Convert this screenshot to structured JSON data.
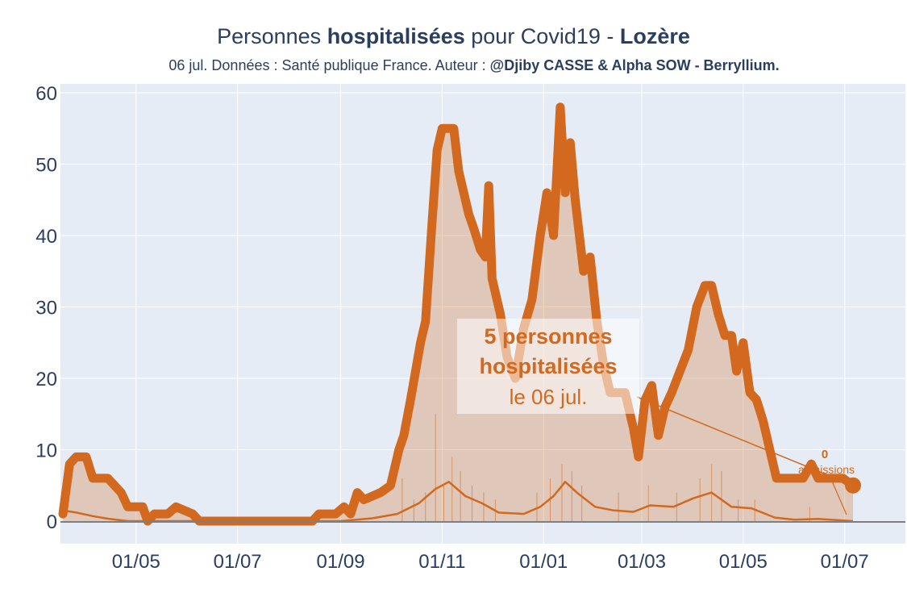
{
  "header": {
    "title_prefix": "Personnes ",
    "title_bold1": "hospitalisées",
    "title_mid": " pour Covid19 - ",
    "title_bold2": "Lozère",
    "subtitle_prefix": "06 jul. Données : Santé publique France. Auteur : ",
    "subtitle_bold": "@Djiby CASSE & Alpha SOW - Berryllium."
  },
  "annotations": {
    "main_line1": "5 personnes",
    "main_line2": "hospitalisées",
    "main_line3": "le 06 jul.",
    "admissions_value": "0",
    "admissions_label": "admissions"
  },
  "colors": {
    "line": "#d2691e",
    "fill": "rgba(210,105,30,0.28)",
    "plot_bg": "#e5ecf6",
    "grid": "#ffffff",
    "text": "#2a3f5f"
  },
  "chart_data": {
    "type": "area",
    "x_start": "2020-03-18",
    "x_end": "2021-07-06",
    "ylim": [
      0,
      60
    ],
    "yticks": [
      0,
      10,
      20,
      30,
      40,
      50,
      60
    ],
    "xticks": [
      {
        "date": "2020-05-01",
        "label": "01/05"
      },
      {
        "date": "2020-07-01",
        "label": "01/07"
      },
      {
        "date": "2020-09-01",
        "label": "01/09"
      },
      {
        "date": "2020-11-01",
        "label": "01/11"
      },
      {
        "date": "2021-01-01",
        "label": "01/01"
      },
      {
        "date": "2021-03-01",
        "label": "01/03"
      },
      {
        "date": "2021-05-01",
        "label": "01/05"
      },
      {
        "date": "2021-07-01",
        "label": "01/07"
      }
    ],
    "series": [
      {
        "kind": "hospitalisations",
        "points": [
          [
            "2020-03-18",
            1
          ],
          [
            "2020-03-22",
            8
          ],
          [
            "2020-03-26",
            9
          ],
          [
            "2020-04-01",
            9
          ],
          [
            "2020-04-05",
            6
          ],
          [
            "2020-04-14",
            6
          ],
          [
            "2020-04-18",
            5
          ],
          [
            "2020-04-22",
            4
          ],
          [
            "2020-04-26",
            2
          ],
          [
            "2020-05-05",
            2
          ],
          [
            "2020-05-08",
            0
          ],
          [
            "2020-05-12",
            1
          ],
          [
            "2020-05-20",
            1
          ],
          [
            "2020-05-25",
            2
          ],
          [
            "2020-06-04",
            1
          ],
          [
            "2020-06-08",
            0
          ],
          [
            "2020-08-15",
            0
          ],
          [
            "2020-08-19",
            1
          ],
          [
            "2020-08-29",
            1
          ],
          [
            "2020-09-03",
            2
          ],
          [
            "2020-09-07",
            1
          ],
          [
            "2020-09-11",
            4
          ],
          [
            "2020-09-15",
            3
          ],
          [
            "2020-09-25",
            4
          ],
          [
            "2020-10-01",
            5
          ],
          [
            "2020-10-06",
            10
          ],
          [
            "2020-10-09",
            12
          ],
          [
            "2020-10-13",
            17
          ],
          [
            "2020-10-19",
            25
          ],
          [
            "2020-10-22",
            28
          ],
          [
            "2020-10-26",
            42
          ],
          [
            "2020-10-29",
            52
          ],
          [
            "2020-11-01",
            55
          ],
          [
            "2020-11-05",
            55
          ],
          [
            "2020-11-08",
            55
          ],
          [
            "2020-11-11",
            49
          ],
          [
            "2020-11-14",
            46
          ],
          [
            "2020-11-17",
            43
          ],
          [
            "2020-11-20",
            41
          ],
          [
            "2020-11-24",
            38
          ],
          [
            "2020-11-27",
            37
          ],
          [
            "2020-11-29",
            47
          ],
          [
            "2020-12-01",
            34
          ],
          [
            "2020-12-06",
            29
          ],
          [
            "2020-12-10",
            23
          ],
          [
            "2020-12-15",
            20
          ],
          [
            "2020-12-20",
            27
          ],
          [
            "2020-12-25",
            31
          ],
          [
            "2020-12-30",
            40
          ],
          [
            "2021-01-03",
            46
          ],
          [
            "2021-01-07",
            40
          ],
          [
            "2021-01-11",
            58
          ],
          [
            "2021-01-14",
            46
          ],
          [
            "2021-01-17",
            53
          ],
          [
            "2021-01-20",
            45
          ],
          [
            "2021-01-25",
            35
          ],
          [
            "2021-01-29",
            37
          ],
          [
            "2021-02-02",
            28
          ],
          [
            "2021-02-06",
            22
          ],
          [
            "2021-02-10",
            18
          ],
          [
            "2021-02-19",
            18
          ],
          [
            "2021-02-24",
            13
          ],
          [
            "2021-02-27",
            9
          ],
          [
            "2021-03-03",
            17
          ],
          [
            "2021-03-07",
            19
          ],
          [
            "2021-03-11",
            12
          ],
          [
            "2021-03-15",
            16
          ],
          [
            "2021-03-19",
            18
          ],
          [
            "2021-03-24",
            21
          ],
          [
            "2021-03-29",
            24
          ],
          [
            "2021-04-03",
            30
          ],
          [
            "2021-04-08",
            33
          ],
          [
            "2021-04-12",
            33
          ],
          [
            "2021-04-16",
            29
          ],
          [
            "2021-04-20",
            26
          ],
          [
            "2021-04-24",
            26
          ],
          [
            "2021-04-27",
            21
          ],
          [
            "2021-05-01",
            25
          ],
          [
            "2021-05-05",
            18
          ],
          [
            "2021-05-09",
            17
          ],
          [
            "2021-05-13",
            14
          ],
          [
            "2021-05-17",
            10
          ],
          [
            "2021-05-21",
            6
          ],
          [
            "2021-06-06",
            6
          ],
          [
            "2021-06-11",
            8
          ],
          [
            "2021-06-15",
            6
          ],
          [
            "2021-06-30",
            6
          ],
          [
            "2021-07-06",
            5
          ]
        ]
      },
      {
        "kind": "admissions",
        "points": [
          [
            "2020-03-18",
            1.5
          ],
          [
            "2020-03-26",
            1.2
          ],
          [
            "2020-04-05",
            0.7
          ],
          [
            "2020-04-15",
            0.3
          ],
          [
            "2020-04-26",
            0
          ],
          [
            "2020-09-01",
            0
          ],
          [
            "2020-09-20",
            0.4
          ],
          [
            "2020-10-05",
            1.0
          ],
          [
            "2020-10-18",
            2.5
          ],
          [
            "2020-10-28",
            4.5
          ],
          [
            "2020-11-05",
            5.5
          ],
          [
            "2020-11-15",
            3.5
          ],
          [
            "2020-11-25",
            2.5
          ],
          [
            "2020-12-05",
            1.2
          ],
          [
            "2020-12-20",
            1.0
          ],
          [
            "2020-12-30",
            2.0
          ],
          [
            "2021-01-07",
            3.5
          ],
          [
            "2021-01-14",
            5.5
          ],
          [
            "2021-01-21",
            4.0
          ],
          [
            "2021-02-01",
            2.0
          ],
          [
            "2021-02-12",
            1.5
          ],
          [
            "2021-02-24",
            1.3
          ],
          [
            "2021-03-06",
            2.2
          ],
          [
            "2021-03-20",
            2.0
          ],
          [
            "2021-04-01",
            3.2
          ],
          [
            "2021-04-12",
            4.0
          ],
          [
            "2021-04-24",
            2.0
          ],
          [
            "2021-05-06",
            1.8
          ],
          [
            "2021-05-20",
            0.5
          ],
          [
            "2021-06-01",
            0.2
          ],
          [
            "2021-06-15",
            0.3
          ],
          [
            "2021-07-06",
            0
          ]
        ]
      },
      {
        "kind": "daily_admissions_bars",
        "points": [
          [
            "2020-10-08",
            6
          ],
          [
            "2020-10-15",
            3
          ],
          [
            "2020-10-22",
            4
          ],
          [
            "2020-10-28",
            15
          ],
          [
            "2020-11-02",
            5
          ],
          [
            "2020-11-07",
            9
          ],
          [
            "2020-11-12",
            7
          ],
          [
            "2020-11-19",
            5
          ],
          [
            "2020-11-26",
            4
          ],
          [
            "2020-12-03",
            3
          ],
          [
            "2020-12-28",
            4
          ],
          [
            "2021-01-05",
            6
          ],
          [
            "2021-01-12",
            8
          ],
          [
            "2021-01-18",
            7
          ],
          [
            "2021-01-24",
            5
          ],
          [
            "2021-02-15",
            4
          ],
          [
            "2021-03-05",
            5
          ],
          [
            "2021-03-22",
            4
          ],
          [
            "2021-04-05",
            6
          ],
          [
            "2021-04-12",
            8
          ],
          [
            "2021-04-18",
            7
          ],
          [
            "2021-04-28",
            3
          ],
          [
            "2021-05-08",
            3
          ],
          [
            "2021-06-10",
            2
          ]
        ]
      }
    ]
  }
}
